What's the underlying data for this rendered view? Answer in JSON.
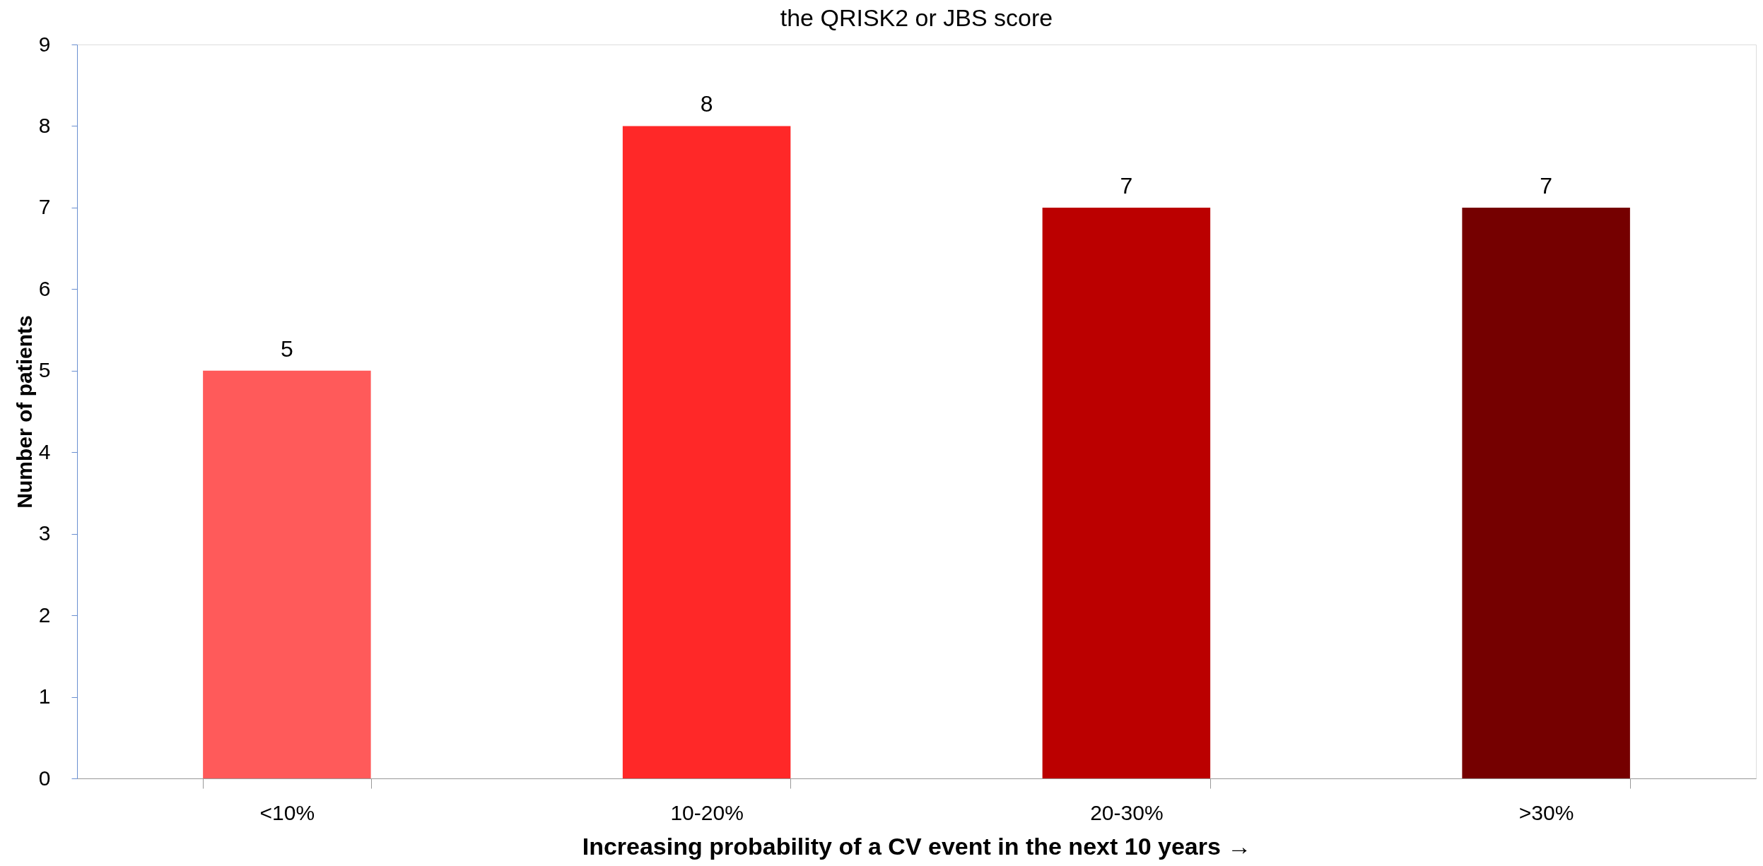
{
  "chart_data": {
    "type": "bar",
    "title": "the QRISK2 or JBS score",
    "categories": [
      "<10%",
      "10-20%",
      "20-30%",
      ">30%"
    ],
    "values": [
      5,
      8,
      7,
      7
    ],
    "colors": [
      "#ff5a5a",
      "#ff2828",
      "#bb0000",
      "#750000"
    ],
    "xlabel": "Increasing probability of a CV event in the next 10 years →",
    "ylabel": "Number of patients",
    "ylim": [
      0,
      9
    ],
    "yticks": [
      0,
      1,
      2,
      3,
      4,
      5,
      6,
      7,
      8,
      9
    ],
    "data_labels": true,
    "grid": false
  }
}
